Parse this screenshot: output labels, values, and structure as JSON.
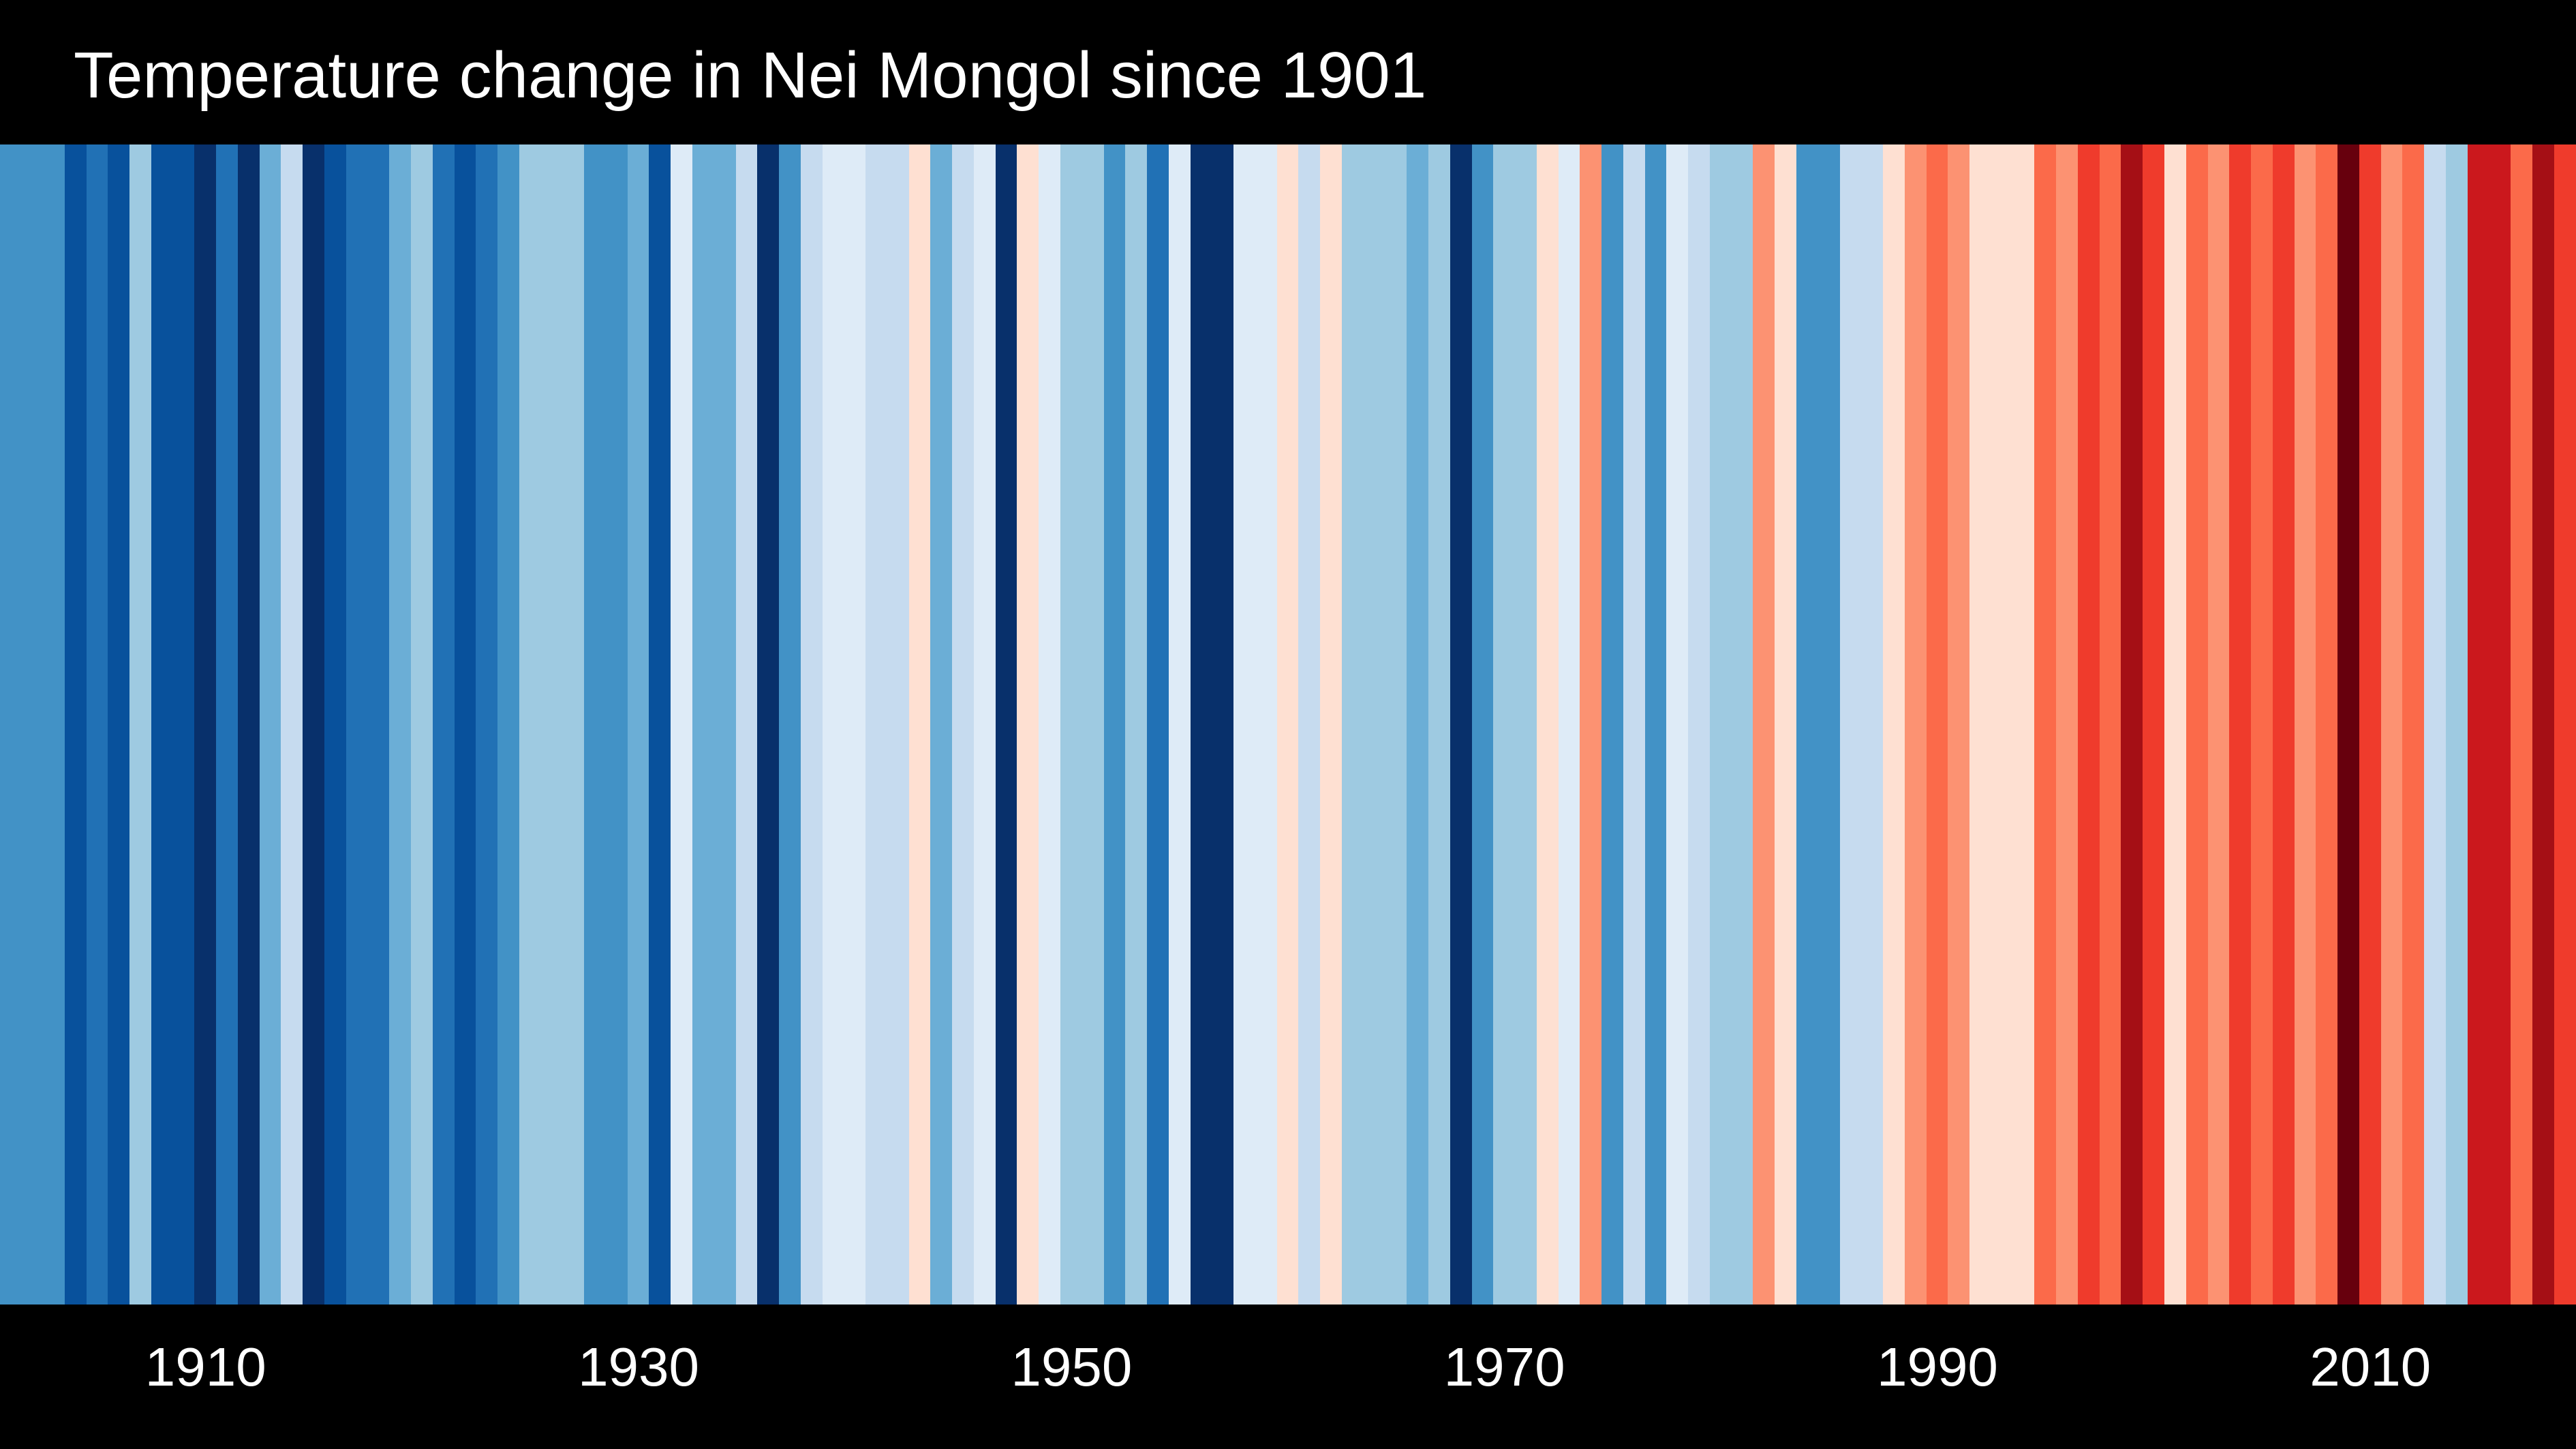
{
  "chart_data": {
    "type": "heatmap",
    "title": "Temperature change in Nei Mongol since 1901",
    "xlabel": "",
    "ylabel": "",
    "x_start": 1901,
    "x_end": 2019,
    "xticks": [
      1910,
      1930,
      1950,
      1970,
      1990,
      2010
    ],
    "grid": false,
    "legend": "none",
    "colorscale": [
      "#08306b",
      "#08519c",
      "#2171b5",
      "#4292c6",
      "#6baed6",
      "#9ecae1",
      "#c6dbef",
      "#deebf7",
      "#fee0d2",
      "#fcbba1",
      "#fc9272",
      "#fb6a4a",
      "#ef3b2c",
      "#cb181d",
      "#a50f15",
      "#67000d"
    ],
    "years": [
      1901,
      1902,
      1903,
      1904,
      1905,
      1906,
      1907,
      1908,
      1909,
      1910,
      1911,
      1912,
      1913,
      1914,
      1915,
      1916,
      1917,
      1918,
      1919,
      1920,
      1921,
      1922,
      1923,
      1924,
      1925,
      1926,
      1927,
      1928,
      1929,
      1930,
      1931,
      1932,
      1933,
      1934,
      1935,
      1936,
      1937,
      1938,
      1939,
      1940,
      1941,
      1942,
      1943,
      1944,
      1945,
      1946,
      1947,
      1948,
      1949,
      1950,
      1951,
      1952,
      1953,
      1954,
      1955,
      1956,
      1957,
      1958,
      1959,
      1960,
      1961,
      1962,
      1963,
      1964,
      1965,
      1966,
      1967,
      1968,
      1969,
      1970,
      1971,
      1972,
      1973,
      1974,
      1975,
      1976,
      1977,
      1978,
      1979,
      1980,
      1981,
      1982,
      1983,
      1984,
      1985,
      1986,
      1987,
      1988,
      1989,
      1990,
      1991,
      1992,
      1993,
      1994,
      1995,
      1996,
      1997,
      1998,
      1999,
      2000,
      2001,
      2002,
      2003,
      2004,
      2005,
      2006,
      2007,
      2008,
      2009,
      2010,
      2011,
      2012,
      2013,
      2014,
      2015,
      2016,
      2017,
      2018,
      2019
    ],
    "color_index": [
      3,
      3,
      3,
      1,
      2,
      1,
      5,
      1,
      1,
      0,
      2,
      0,
      4,
      6,
      0,
      1,
      2,
      2,
      4,
      5,
      2,
      1,
      2,
      3,
      5,
      5,
      5,
      3,
      3,
      4,
      1,
      7,
      4,
      4,
      6,
      0,
      3,
      6,
      7,
      7,
      6,
      6,
      8,
      4,
      6,
      7,
      0,
      8,
      7,
      5,
      5,
      3,
      5,
      2,
      7,
      0,
      0,
      7,
      7,
      8,
      6,
      8,
      5,
      5,
      5,
      4,
      5,
      0,
      3,
      5,
      5,
      8,
      7,
      10,
      3,
      6,
      3,
      7,
      6,
      5,
      5,
      10,
      8,
      3,
      3,
      6,
      6,
      8,
      10,
      11,
      10,
      8,
      8,
      8,
      11,
      10,
      12,
      11,
      14,
      12,
      8,
      11,
      10,
      12,
      11,
      12,
      10,
      11,
      15,
      12,
      10,
      11,
      6,
      5,
      13,
      13,
      11,
      14,
      12
    ]
  }
}
